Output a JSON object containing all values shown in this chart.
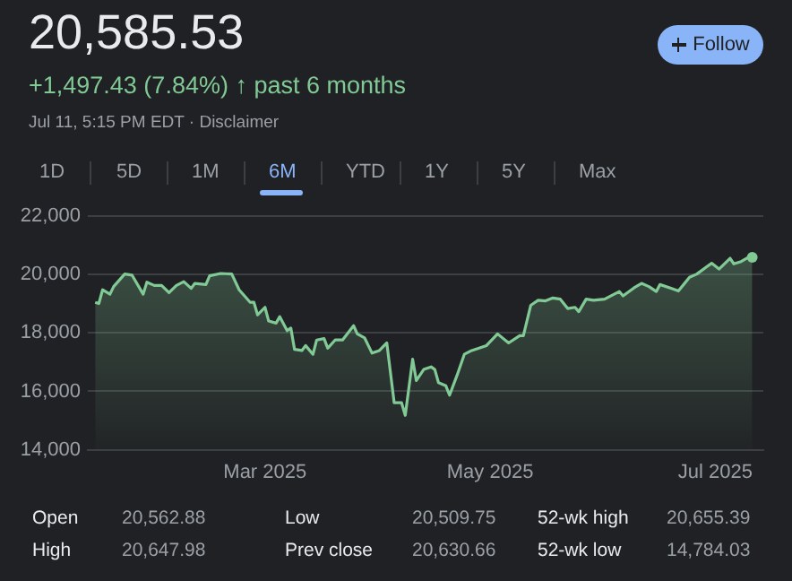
{
  "chart_data": {
    "type": "area",
    "title": "20,585.53",
    "subtitle": "+1,497.43 (7.84%) ↑ past 6 months",
    "annotations": [
      "Jul 11, 5:15 PM EDT · Disclaimer",
      "Follow",
      "1D",
      "5D",
      "1M",
      "6M",
      "YTD",
      "1Y",
      "5Y",
      "Max",
      "Open",
      "20,562.88",
      "Low",
      "20,509.75",
      "52-wk high",
      "20,655.39",
      "High",
      "20,647.98",
      "Prev close",
      "20,630.66",
      "52-wk low",
      "14,784.03"
    ],
    "x": [
      "2025-01-14",
      "2025-01-15",
      "2025-01-16",
      "2025-01-18",
      "2025-01-19",
      "2025-01-22",
      "2025-01-24",
      "2025-01-27",
      "2025-01-28",
      "2025-01-30",
      "2025-02-01",
      "2025-02-03",
      "2025-02-05",
      "2025-02-07",
      "2025-02-09",
      "2025-02-10",
      "2025-02-13",
      "2025-02-14",
      "2025-02-17",
      "2025-02-20",
      "2025-02-22",
      "2025-02-25",
      "2025-02-26",
      "2025-02-27",
      "2025-03-01",
      "2025-03-02",
      "2025-03-04",
      "2025-03-05",
      "2025-03-07",
      "2025-03-08",
      "2025-03-09",
      "2025-03-11",
      "2025-03-12",
      "2025-03-14",
      "2025-03-15",
      "2025-03-17",
      "2025-03-18",
      "2025-03-20",
      "2025-03-22",
      "2025-03-25",
      "2025-03-26",
      "2025-03-28",
      "2025-03-30",
      "2025-04-01",
      "2025-04-03",
      "2025-04-05",
      "2025-04-07",
      "2025-04-08",
      "2025-04-10",
      "2025-04-11",
      "2025-04-13",
      "2025-04-15",
      "2025-04-16",
      "2025-04-17",
      "2025-04-19",
      "2025-04-20",
      "2025-04-22",
      "2025-04-24",
      "2025-04-26",
      "2025-04-28",
      "2025-04-30",
      "2025-05-03",
      "2025-05-06",
      "2025-05-09",
      "2025-05-10",
      "2025-05-12",
      "2025-05-14",
      "2025-05-16",
      "2025-05-18",
      "2025-05-20",
      "2025-05-22",
      "2025-05-24",
      "2025-05-25",
      "2025-05-27",
      "2025-05-29",
      "2025-06-01",
      "2025-06-05",
      "2025-06-06",
      "2025-06-09",
      "2025-06-11",
      "2025-06-13",
      "2025-06-15",
      "2025-06-16",
      "2025-06-19",
      "2025-06-21",
      "2025-06-24",
      "2025-06-26",
      "2025-06-29",
      "2025-06-30",
      "2025-07-02",
      "2025-07-05",
      "2025-07-06",
      "2025-07-08",
      "2025-07-10",
      "2025-07-11"
    ],
    "series": [
      {
        "color": "#81c995",
        "values": [
          19050,
          19010,
          19480,
          19330,
          19590,
          20020,
          19980,
          19330,
          19740,
          19630,
          19630,
          19380,
          19630,
          19760,
          19530,
          19700,
          19660,
          19960,
          20040,
          20020,
          19480,
          19050,
          19050,
          18620,
          18880,
          18410,
          18340,
          18560,
          18080,
          18170,
          17440,
          17400,
          17570,
          17270,
          17760,
          17810,
          17480,
          17760,
          17760,
          18250,
          17970,
          17830,
          17310,
          17400,
          17660,
          15610,
          15610,
          15180,
          17100,
          16370,
          16750,
          16840,
          16750,
          16300,
          16190,
          15870,
          16540,
          17270,
          17400,
          17480,
          17570,
          17970,
          17660,
          17910,
          17910,
          18950,
          19120,
          19100,
          19200,
          19160,
          18840,
          18880,
          18730,
          19160,
          19120,
          19160,
          19420,
          19270,
          19550,
          19700,
          19590,
          19420,
          19660,
          19530,
          19440,
          19910,
          20020,
          20300,
          20390,
          20190,
          20560,
          20370,
          20450,
          20600,
          20590
        ]
      }
    ],
    "xlim": [
      "2025-01-12",
      "2025-07-14"
    ],
    "xticks": [
      {
        "value": "2025-03-01",
        "label": "Mar 2025"
      },
      {
        "value": "2025-05-01",
        "label": "May 2025"
      },
      {
        "value": "2025-07-01",
        "label": "Jul 2025"
      }
    ],
    "ylim": [
      14000,
      22000
    ],
    "yticks": [
      {
        "value": 14000,
        "label": "14,000"
      },
      {
        "value": 16000,
        "label": "16,000"
      },
      {
        "value": 18000,
        "label": "18,000"
      },
      {
        "value": 20000,
        "label": "20,000"
      },
      {
        "value": 22000,
        "label": "22,000"
      }
    ],
    "grid": "y",
    "legend": false
  }
}
